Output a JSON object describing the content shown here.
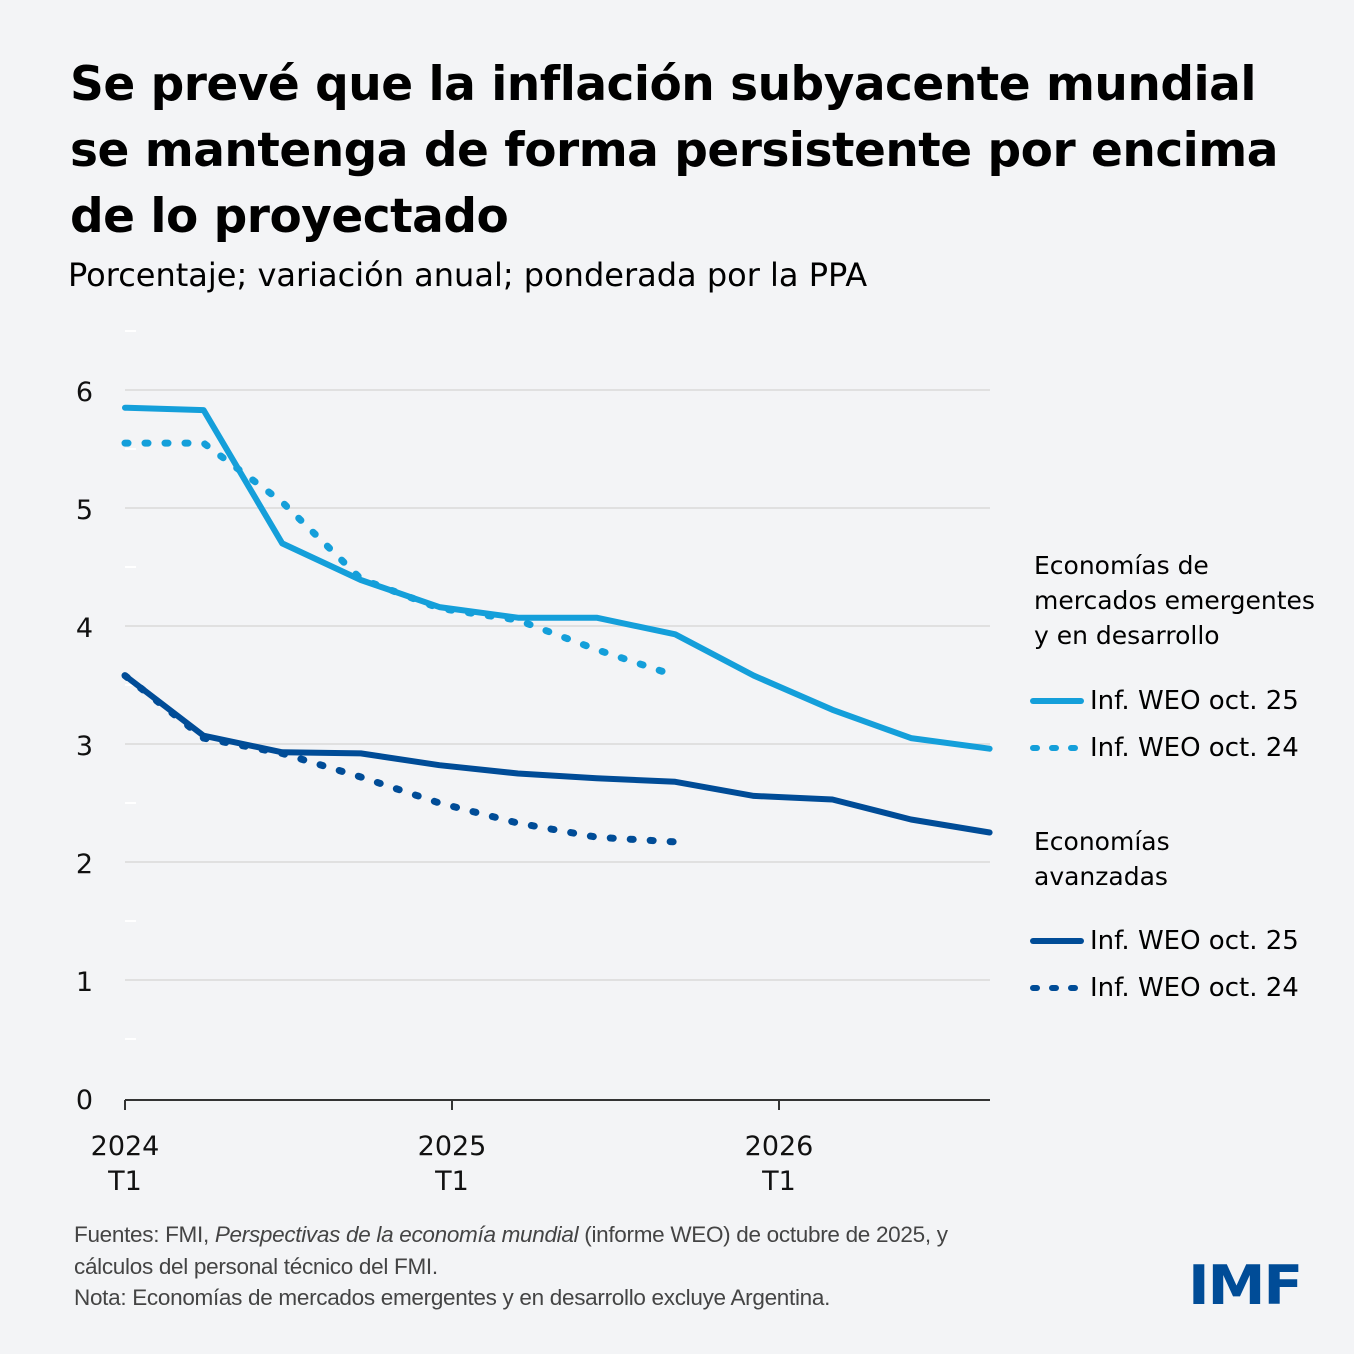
{
  "header": {
    "title": "Se prevé que la inflación subyacente mundial se mantenga de forma persistente por encima de lo proyectado",
    "subtitle": "Porcentaje; variación anual; ponderada por la PPA"
  },
  "colors": {
    "emde": "#149fda",
    "advanced": "#004c97",
    "background": "#f3f4f6",
    "grid": "#d9d9d9",
    "axis": "#333333"
  },
  "legend": {
    "groups": [
      {
        "heading": [
          "Economías de",
          "mercados emergentes",
          "y en desarrollo"
        ],
        "items": [
          {
            "label": "Inf. WEO oct. 25",
            "style": "solid"
          },
          {
            "label": "Inf. WEO oct. 24",
            "style": "dotted"
          }
        ]
      },
      {
        "heading": [
          "Economías",
          "avanzadas"
        ],
        "items": [
          {
            "label": "Inf. WEO oct. 25",
            "style": "solid"
          },
          {
            "label": "Inf. WEO oct. 24",
            "style": "dotted"
          }
        ]
      }
    ]
  },
  "footer": {
    "sources_prefix": "Fuentes: FMI, ",
    "sources_italic": "Perspectivas de la economía mundial",
    "sources_suffix": " (informe WEO) de octubre de 2025, y",
    "sources_line2": "cálculos del personal técnico del FMI.",
    "note": "Nota: Economías de mercados emergentes y en desarrollo excluye Argentina."
  },
  "logo": "IMF",
  "chart_data": {
    "type": "line",
    "title": "Se prevé que la inflación subyacente mundial se mantenga de forma persistente por encima de lo proyectado",
    "subtitle": "Porcentaje; variación anual; ponderada por la PPA",
    "xlabel": "",
    "ylabel": "",
    "x": [
      "2024T1",
      "2024T2",
      "2024T3",
      "2024T4",
      "2025T1",
      "2025T2",
      "2025T3",
      "2025T4",
      "2026T1",
      "2026T2",
      "2026T3",
      "2026T4"
    ],
    "x_ticks": [
      {
        "year": "2024",
        "quarter": "T1"
      },
      {
        "year": "2025",
        "quarter": "T1"
      },
      {
        "year": "2026",
        "quarter": "T1"
      }
    ],
    "ylim": [
      0,
      6.5
    ],
    "y_ticks": [
      0,
      1,
      2,
      3,
      4,
      5,
      6
    ],
    "grid": true,
    "legend_position": "right",
    "series": [
      {
        "name": "Economías de mercados emergentes y en desarrollo — Inf. WEO oct. 25",
        "group": "emde",
        "style": "solid",
        "values": [
          5.85,
          5.83,
          4.7,
          4.39,
          4.16,
          4.07,
          4.07,
          3.93,
          3.58,
          3.29,
          3.05,
          2.96
        ]
      },
      {
        "name": "Economías de mercados emergentes y en desarrollo — Inf. WEO oct. 24",
        "group": "emde",
        "style": "dotted",
        "values": [
          5.55,
          5.55,
          5.05,
          4.4,
          4.15,
          4.05,
          3.8,
          3.58,
          null,
          null,
          null,
          null
        ]
      },
      {
        "name": "Economías avanzadas — Inf. WEO oct. 25",
        "group": "advanced",
        "style": "solid",
        "values": [
          3.58,
          3.07,
          2.93,
          2.92,
          2.82,
          2.75,
          2.71,
          2.68,
          2.56,
          2.53,
          2.36,
          2.25
        ]
      },
      {
        "name": "Economías avanzadas — Inf. WEO oct. 24",
        "group": "advanced",
        "style": "dotted",
        "values": [
          3.58,
          3.05,
          2.92,
          2.72,
          2.5,
          2.33,
          2.21,
          2.17,
          null,
          null,
          null,
          null
        ]
      }
    ]
  }
}
